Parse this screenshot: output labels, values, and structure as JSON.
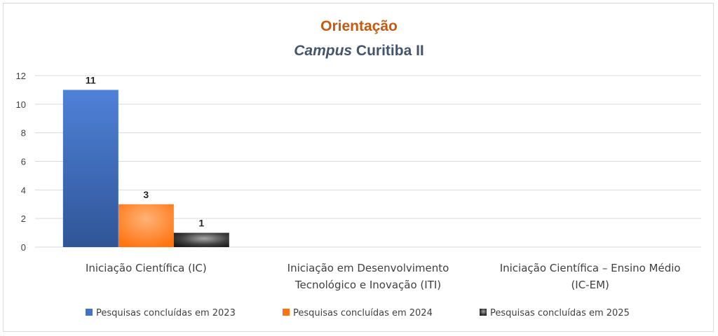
{
  "chart_data": {
    "type": "bar",
    "title": "Orientação",
    "subtitle_italic": "Campus",
    "subtitle_rest": " Curitiba II",
    "categories": [
      [
        "Iniciação Científica (IC)"
      ],
      [
        "Iniciação em Desenvolvimento",
        "Tecnológico e Inovação (ITI)"
      ],
      [
        "Iniciação Científica – Ensino Médio",
        "(IC-EM)"
      ]
    ],
    "series": [
      {
        "name": "Pesquisas concluídas em 2023",
        "values": [
          11,
          null,
          null
        ],
        "color": "#4472c4"
      },
      {
        "name": "Pesquisas concluídas em 2024",
        "values": [
          3,
          null,
          null
        ],
        "color": "#ff7f1e"
      },
      {
        "name": "Pesquisas concluídas em 2025",
        "values": [
          1,
          null,
          null
        ],
        "color": "#3a3a3a"
      }
    ],
    "yticks": [
      0,
      2,
      4,
      6,
      8,
      10,
      12
    ],
    "ylim": [
      0,
      12
    ],
    "grid": true,
    "legend_position": "bottom"
  }
}
